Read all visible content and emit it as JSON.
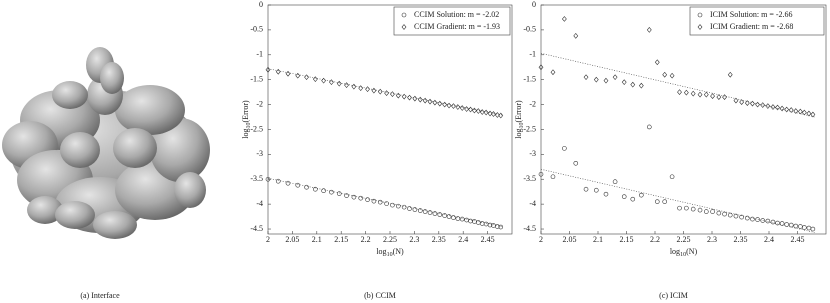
{
  "interface_caption": "(a) Interface",
  "chart_data": [
    {
      "type": "scatter",
      "caption": "(b) CCIM",
      "xlabel_parts": [
        "log",
        "10",
        "(N)"
      ],
      "ylabel_parts": [
        "log",
        "10",
        "(Error)"
      ],
      "xlim": [
        2,
        2.5
      ],
      "xticks": [
        2,
        2.05,
        2.1,
        2.15,
        2.2,
        2.25,
        2.3,
        2.35,
        2.4,
        2.45
      ],
      "ylim": [
        -4.6,
        0
      ],
      "yticks": [
        0,
        -0.5,
        -1,
        -1.5,
        -2,
        -2.5,
        -3,
        -3.5,
        -4,
        -4.5
      ],
      "legend": "upper right",
      "x": [
        2.0,
        2.021,
        2.041,
        2.061,
        2.079,
        2.097,
        2.114,
        2.13,
        2.146,
        2.161,
        2.176,
        2.19,
        2.204,
        2.217,
        2.23,
        2.243,
        2.255,
        2.267,
        2.279,
        2.29,
        2.301,
        2.312,
        2.322,
        2.332,
        2.342,
        2.352,
        2.362,
        2.371,
        2.38,
        2.389,
        2.398,
        2.407,
        2.415,
        2.423,
        2.431,
        2.439,
        2.447,
        2.455,
        2.462,
        2.47,
        2.477
      ],
      "series": [
        {
          "name": "CCIM Solution: m = -2.02",
          "marker": "circle",
          "color": "#333333",
          "values": [
            -3.5,
            -3.54,
            -3.58,
            -3.62,
            -3.66,
            -3.7,
            -3.73,
            -3.76,
            -3.79,
            -3.83,
            -3.86,
            -3.88,
            -3.91,
            -3.94,
            -3.96,
            -3.99,
            -4.02,
            -4.04,
            -4.06,
            -4.09,
            -4.11,
            -4.13,
            -4.15,
            -4.17,
            -4.19,
            -4.21,
            -4.23,
            -4.25,
            -4.27,
            -4.29,
            -4.3,
            -4.32,
            -4.34,
            -4.35,
            -4.37,
            -4.39,
            -4.4,
            -4.42,
            -4.43,
            -4.45,
            -4.46
          ]
        },
        {
          "name": "CCIM Gradient: m = -1.93",
          "marker": "diamond",
          "color": "#333333",
          "values": [
            -1.3,
            -1.34,
            -1.38,
            -1.42,
            -1.45,
            -1.49,
            -1.52,
            -1.55,
            -1.58,
            -1.61,
            -1.64,
            -1.67,
            -1.69,
            -1.72,
            -1.74,
            -1.77,
            -1.79,
            -1.82,
            -1.84,
            -1.86,
            -1.88,
            -1.9,
            -1.92,
            -1.94,
            -1.96,
            -1.98,
            -2.0,
            -2.02,
            -2.03,
            -2.05,
            -2.07,
            -2.09,
            -2.1,
            -2.12,
            -2.13,
            -2.15,
            -2.16,
            -2.18,
            -2.19,
            -2.21,
            -2.22
          ]
        }
      ],
      "fit_lines": [
        {
          "x": [
            2,
            2.48
          ],
          "values": [
            -3.48,
            -4.45
          ]
        },
        {
          "x": [
            2,
            2.48
          ],
          "values": [
            -1.28,
            -2.21
          ]
        }
      ]
    },
    {
      "type": "scatter",
      "caption": "(c) ICIM",
      "xlabel_parts": [
        "log",
        "10",
        "(N)"
      ],
      "ylabel_parts": [
        "log",
        "10",
        "(Error)"
      ],
      "xlim": [
        2,
        2.5
      ],
      "xticks": [
        2,
        2.05,
        2.1,
        2.15,
        2.2,
        2.25,
        2.3,
        2.35,
        2.4,
        2.45
      ],
      "ylim": [
        -4.6,
        0
      ],
      "yticks": [
        0,
        -0.5,
        -1,
        -1.5,
        -2,
        -2.5,
        -3,
        -3.5,
        -4,
        -4.5
      ],
      "legend": "upper right",
      "x": [
        2.0,
        2.021,
        2.041,
        2.061,
        2.079,
        2.097,
        2.114,
        2.13,
        2.146,
        2.161,
        2.176,
        2.19,
        2.204,
        2.217,
        2.23,
        2.243,
        2.255,
        2.267,
        2.279,
        2.29,
        2.301,
        2.312,
        2.322,
        2.332,
        2.342,
        2.352,
        2.362,
        2.371,
        2.38,
        2.389,
        2.398,
        2.407,
        2.415,
        2.423,
        2.431,
        2.439,
        2.447,
        2.455,
        2.462,
        2.47,
        2.477
      ],
      "series": [
        {
          "name": "ICIM Solution: m = -2.66",
          "marker": "circle",
          "color": "#333333",
          "values": [
            -3.4,
            -3.45,
            -2.88,
            -3.18,
            -3.7,
            -3.72,
            -3.8,
            -3.55,
            -3.85,
            -3.9,
            -3.82,
            -2.45,
            -3.95,
            -3.95,
            -3.45,
            -4.08,
            -4.08,
            -4.1,
            -4.12,
            -4.15,
            -4.15,
            -4.18,
            -4.2,
            -4.22,
            -4.24,
            -4.26,
            -4.28,
            -4.3,
            -4.31,
            -4.33,
            -4.34,
            -4.36,
            -4.38,
            -4.39,
            -4.41,
            -4.42,
            -4.44,
            -4.45,
            -4.47,
            -4.48,
            -4.5
          ]
        },
        {
          "name": "ICIM Gradient: m = -2.68",
          "marker": "diamond",
          "color": "#333333",
          "values": [
            -1.25,
            -1.35,
            -0.28,
            -0.62,
            -1.45,
            -1.5,
            -1.52,
            -1.45,
            -1.55,
            -1.6,
            -1.62,
            -0.5,
            -1.15,
            -1.4,
            -1.42,
            -1.75,
            -1.76,
            -1.78,
            -1.8,
            -1.8,
            -1.83,
            -1.85,
            -1.85,
            -1.4,
            -1.92,
            -1.95,
            -1.97,
            -1.98,
            -2.0,
            -2.01,
            -2.03,
            -2.05,
            -2.06,
            -2.08,
            -2.1,
            -2.11,
            -2.13,
            -2.14,
            -2.16,
            -2.18,
            -2.2
          ]
        }
      ],
      "fit_lines": [
        {
          "x": [
            2,
            2.48
          ],
          "values": [
            -3.3,
            -4.57
          ]
        },
        {
          "x": [
            2,
            2.48
          ],
          "values": [
            -0.97,
            -2.25
          ]
        }
      ]
    }
  ]
}
